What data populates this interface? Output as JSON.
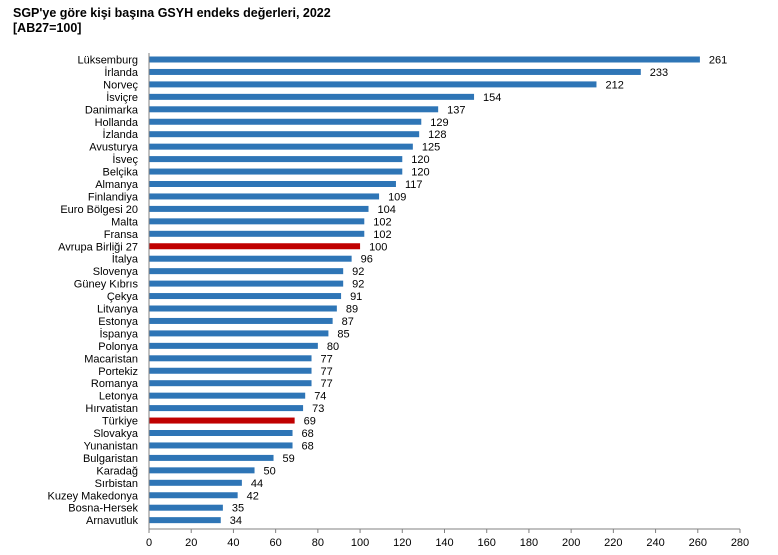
{
  "chart_data": {
    "type": "bar",
    "orientation": "horizontal",
    "title": "SGP'ye göre kişi başına GSYH endeks değerleri, 2022",
    "subtitle": "[AB27=100]",
    "xlim": [
      0,
      280
    ],
    "xticks": [
      0,
      20,
      40,
      60,
      80,
      100,
      120,
      140,
      160,
      180,
      200,
      220,
      240,
      260,
      280
    ],
    "grid": false,
    "colors": {
      "default": "#2E75B6",
      "highlight": "#C00000"
    },
    "highlighted_categories": [
      "Avrupa Birliği 27",
      "Türkiye"
    ],
    "categories": [
      "Lüksemburg",
      "İrlanda",
      "Norveç",
      "İsviçre",
      "Danimarka",
      "Hollanda",
      "İzlanda",
      "Avusturya",
      "İsveç",
      "Belçika",
      "Almanya",
      "Finlandiya",
      "Euro Bölgesi 20",
      "Malta",
      "Fransa",
      "Avrupa Birliği 27",
      "İtalya",
      "Slovenya",
      "Güney Kıbrıs",
      "Çekya",
      "Litvanya",
      "Estonya",
      "İspanya",
      "Polonya",
      "Macaristan",
      "Portekiz",
      "Romanya",
      "Letonya",
      "Hırvatistan",
      "Türkiye",
      "Slovakya",
      "Yunanistan",
      "Bulgaristan",
      "Karadağ",
      "Sırbistan",
      "Kuzey Makedonya",
      "Bosna-Hersek",
      "Arnavutluk"
    ],
    "values": [
      261,
      233,
      212,
      154,
      137,
      129,
      128,
      125,
      120,
      120,
      117,
      109,
      104,
      102,
      102,
      100,
      96,
      92,
      92,
      91,
      89,
      87,
      85,
      80,
      77,
      77,
      77,
      74,
      73,
      69,
      68,
      68,
      59,
      50,
      44,
      42,
      35,
      34
    ]
  }
}
